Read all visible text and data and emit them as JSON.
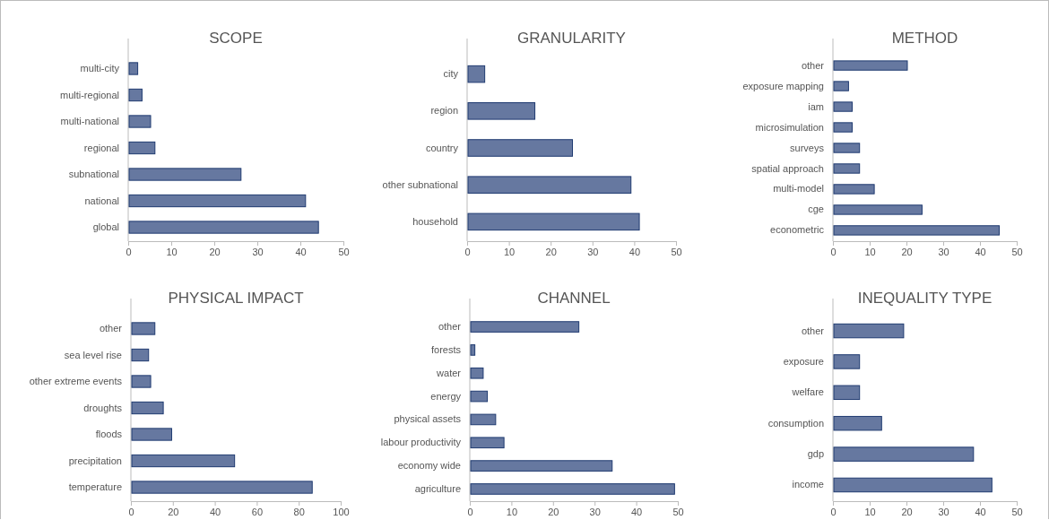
{
  "chart_data": [
    {
      "type": "bar",
      "orientation": "horizontal",
      "title": "SCOPE",
      "categories": [
        "multi-city",
        "multi-regional",
        "multi-national",
        "regional",
        "subnational",
        "national",
        "global"
      ],
      "values": [
        2,
        3,
        5,
        6,
        26,
        41,
        44
      ],
      "color": "#6678a0",
      "xlim": [
        0,
        50
      ],
      "xticks": [
        0,
        10,
        20,
        30,
        40,
        50
      ]
    },
    {
      "type": "bar",
      "orientation": "horizontal",
      "title": "GRANULARITY",
      "categories": [
        "city",
        "region",
        "country",
        "other subnational",
        "household"
      ],
      "values": [
        4,
        16,
        25,
        39,
        41
      ],
      "color": "#6678a0",
      "xlim": [
        0,
        50
      ],
      "xticks": [
        0,
        10,
        20,
        30,
        40,
        50
      ]
    },
    {
      "type": "bar",
      "orientation": "horizontal",
      "title": "METHOD",
      "categories": [
        "other",
        "exposure mapping",
        "iam",
        "microsimulation",
        "surveys",
        "spatial approach",
        "multi-model",
        "cge",
        "econometric"
      ],
      "values": [
        20,
        4,
        5,
        5,
        7,
        7,
        11,
        24,
        45
      ],
      "color": "#6678a0",
      "xlim": [
        0,
        50
      ],
      "xticks": [
        0,
        10,
        20,
        30,
        40,
        50
      ]
    },
    {
      "type": "bar",
      "orientation": "horizontal",
      "title": "PHYSICAL IMPACT",
      "categories": [
        "other",
        "sea level rise",
        "other extreme events",
        "droughts",
        "floods",
        "precipitation",
        "temperature"
      ],
      "values": [
        11,
        8,
        9,
        15,
        19,
        49,
        86
      ],
      "color": "#6678a0",
      "xlim": [
        0,
        100
      ],
      "xticks": [
        0,
        20,
        40,
        60,
        80,
        100
      ]
    },
    {
      "type": "bar",
      "orientation": "horizontal",
      "title": "CHANNEL",
      "categories": [
        "other",
        "forests",
        "water",
        "energy",
        "physical assets",
        "labour productivity",
        "economy wide",
        "agriculture"
      ],
      "values": [
        26,
        1,
        3,
        4,
        6,
        8,
        34,
        49
      ],
      "color": "#6678a0",
      "xlim": [
        0,
        50
      ],
      "xticks": [
        0,
        10,
        20,
        30,
        40,
        50
      ]
    },
    {
      "type": "bar",
      "orientation": "horizontal",
      "title": "INEQUALITY TYPE",
      "categories": [
        "other",
        "exposure",
        "welfare",
        "consumption",
        "gdp",
        "income"
      ],
      "values": [
        19,
        7,
        7,
        13,
        38,
        43
      ],
      "color": "#6678a0",
      "xlim": [
        0,
        50
      ],
      "xticks": [
        0,
        10,
        20,
        30,
        40,
        50
      ]
    }
  ]
}
